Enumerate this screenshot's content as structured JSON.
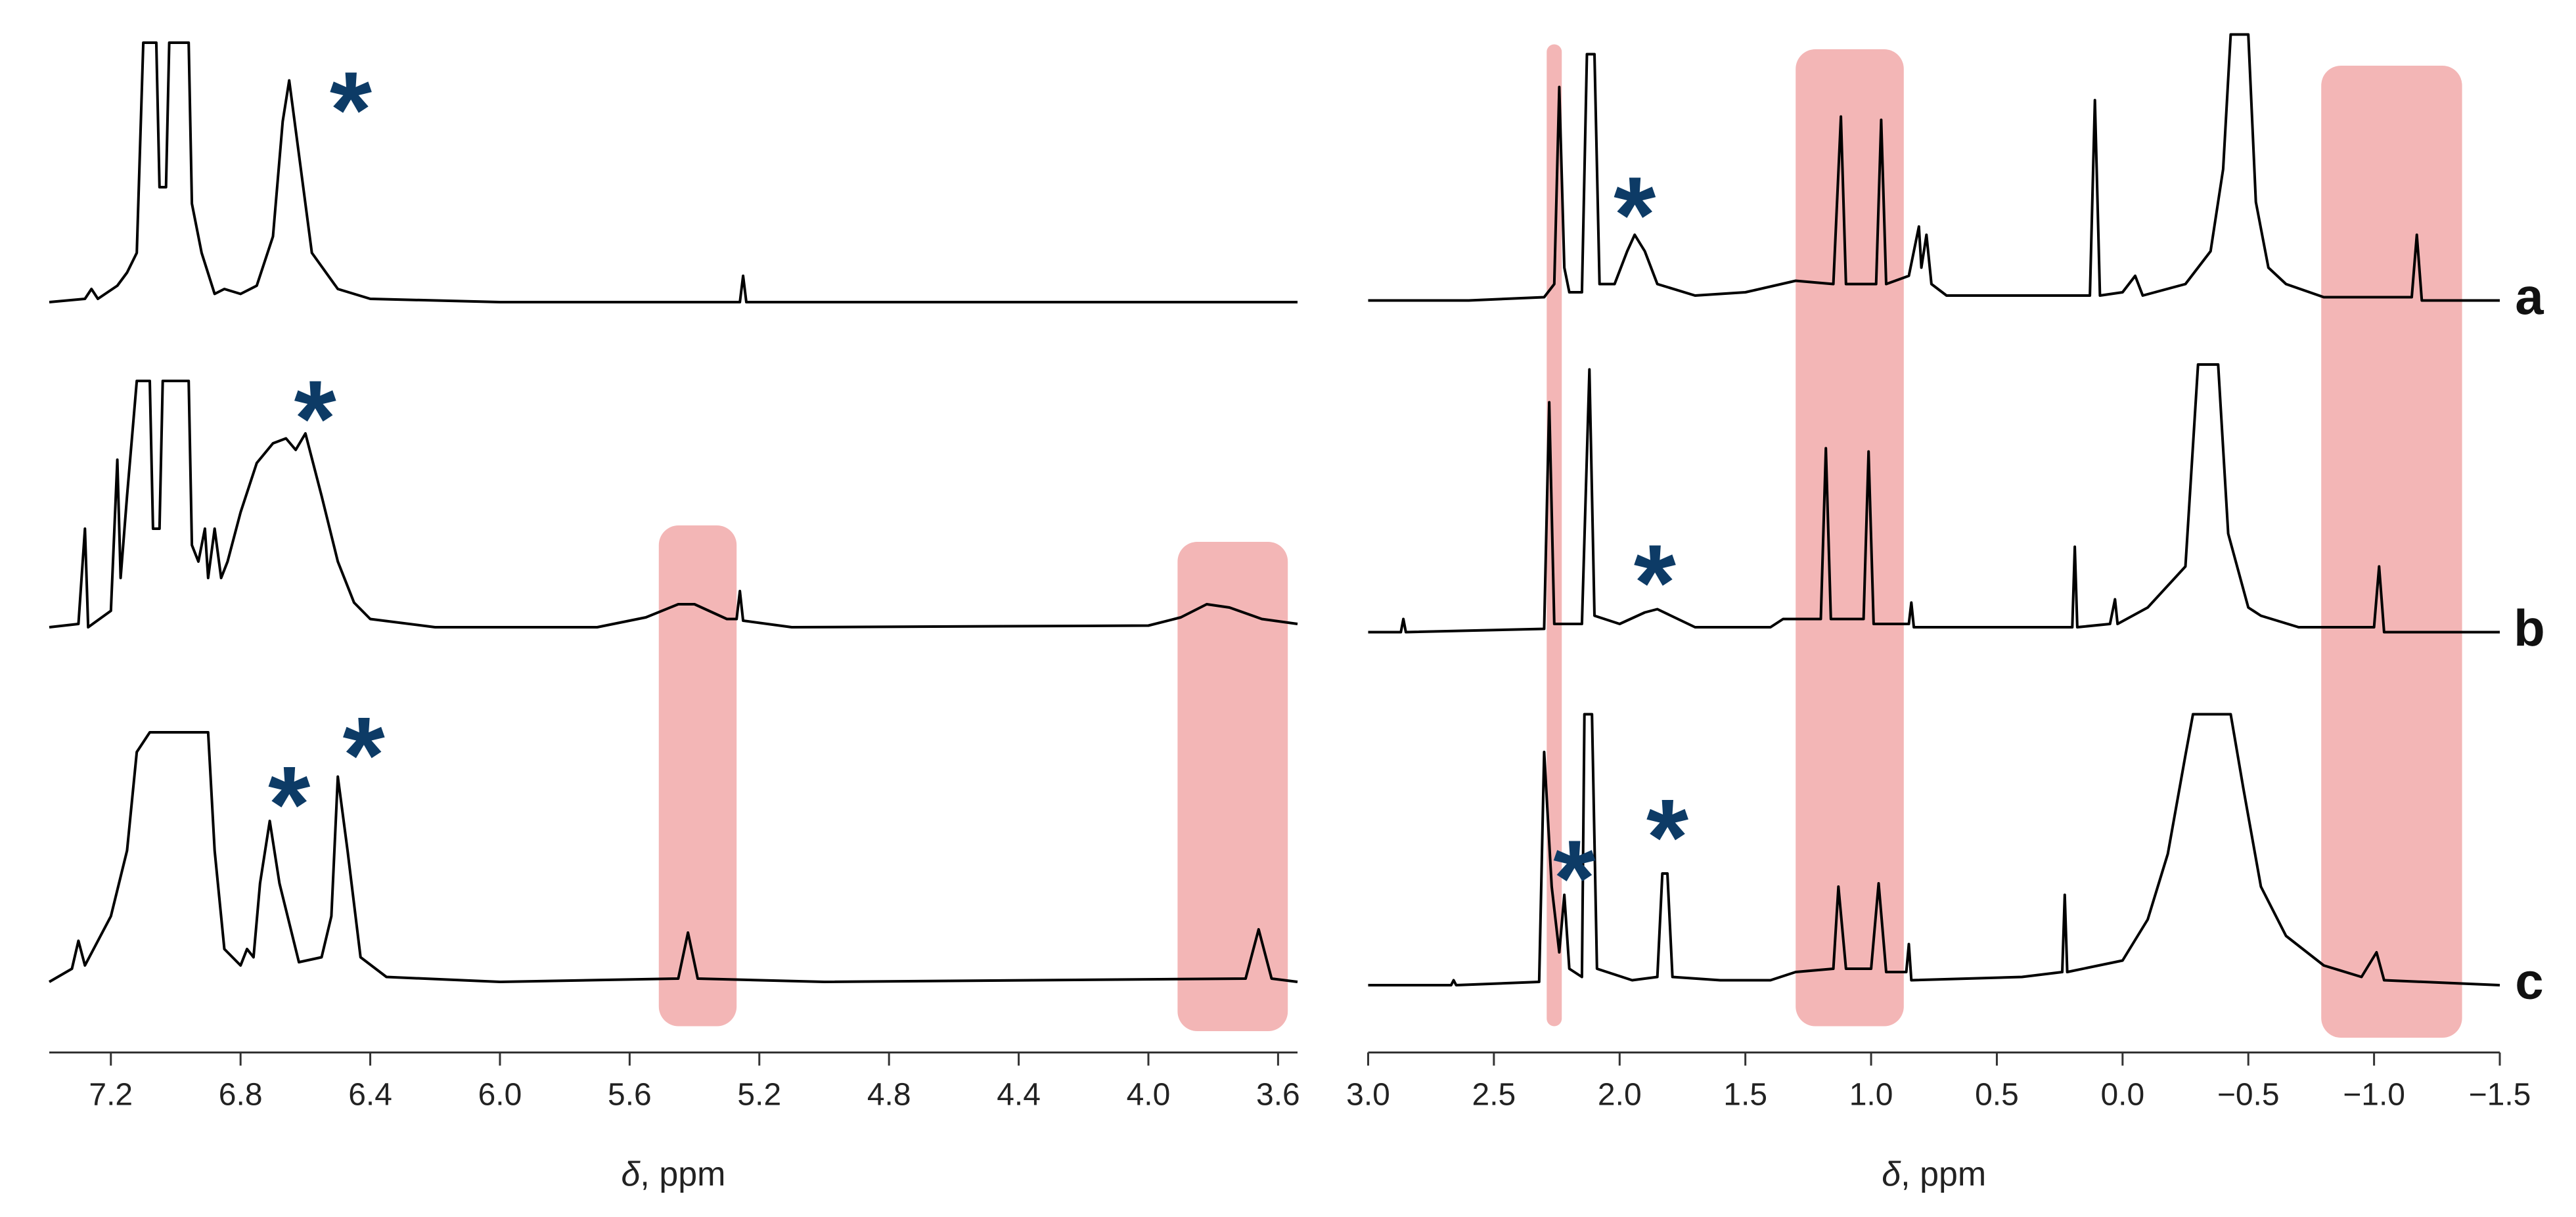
{
  "chart_data": [
    {
      "type": "line",
      "xlim": [
        7.39,
        3.54
      ],
      "xticks": [
        7.2,
        6.8,
        6.4,
        {
          "value": 6,
          "label": "6.0"
        },
        5.6,
        5.2,
        4.8,
        4.4,
        {
          "value": 4,
          "label": "4.0"
        },
        3.6
      ],
      "x_label": {
        "symbol": "δ",
        "text": ", ppm"
      },
      "highlights": [
        [
          5.51,
          5.27
        ],
        [
          3.91,
          3.57
        ]
      ],
      "highlight_color": "#f3b6b6",
      "annotation_color": "#0d3b66",
      "series": [
        {
          "color": "#000000",
          "x": [
            7.39,
            7.28,
            7.26,
            7.24,
            7.18,
            7.15,
            7.12,
            7.1,
            7.06,
            7.05,
            7.03,
            7.02,
            6.96,
            6.95,
            6.92,
            6.88,
            6.85,
            6.8,
            6.75,
            6.7,
            6.67,
            6.65,
            6.62,
            6.58,
            6.5,
            6.4,
            6.0,
            5.26,
            5.25,
            5.24,
            4.8,
            3.54
          ],
          "values": [
            0,
            2,
            8,
            2,
            10,
            18,
            30,
            158,
            158,
            70,
            70,
            158,
            158,
            60,
            30,
            5,
            8,
            5,
            10,
            40,
            110,
            135,
            90,
            30,
            8,
            2,
            0,
            0,
            16,
            0,
            0,
            0
          ],
          "annotations": [
            {
              "text": "*",
              "x": 6.46,
              "y": 132
            }
          ]
        },
        {
          "color": "#000000",
          "x": [
            7.39,
            7.3,
            7.28,
            7.27,
            7.2,
            7.18,
            7.17,
            7.15,
            7.12,
            7.08,
            7.07,
            7.05,
            7.04,
            6.96,
            6.95,
            6.93,
            6.91,
            6.9,
            6.88,
            6.86,
            6.84,
            6.8,
            6.75,
            6.7,
            6.66,
            6.63,
            6.6,
            6.55,
            6.5,
            6.45,
            6.4,
            6.2,
            5.7,
            5.55,
            5.45,
            5.4,
            5.3,
            5.27,
            5.26,
            5.25,
            5.1,
            4.0,
            3.9,
            3.82,
            3.75,
            3.65,
            3.54
          ],
          "values": [
            0,
            2,
            60,
            0,
            10,
            102,
            30,
            80,
            150,
            150,
            60,
            60,
            150,
            150,
            50,
            40,
            60,
            30,
            60,
            30,
            40,
            70,
            100,
            112,
            115,
            108,
            118,
            80,
            40,
            15,
            5,
            0,
            0,
            6,
            14,
            14,
            5,
            5,
            22,
            4,
            0,
            1,
            6,
            14,
            12,
            5,
            2
          ],
          "annotations": [
            {
              "text": "*",
              "x": 6.57,
              "y": 142
            }
          ]
        },
        {
          "color": "#000000",
          "x": [
            7.39,
            7.32,
            7.3,
            7.28,
            7.2,
            7.15,
            7.12,
            7.08,
            6.9,
            6.88,
            6.85,
            6.8,
            6.78,
            6.76,
            6.74,
            6.71,
            6.68,
            6.62,
            6.55,
            6.52,
            6.5,
            6.47,
            6.43,
            6.35,
            6.0,
            5.45,
            5.42,
            5.39,
            5.0,
            3.7,
            3.66,
            3.62,
            3.54
          ],
          "values": [
            0,
            8,
            25,
            10,
            40,
            80,
            140,
            152,
            152,
            80,
            20,
            10,
            20,
            15,
            60,
            98,
            60,
            12,
            15,
            40,
            125,
            80,
            15,
            3,
            0,
            2,
            30,
            2,
            0,
            2,
            32,
            2,
            0
          ],
          "annotations": [
            {
              "text": "*",
              "x": 6.65,
              "y": 123
            },
            {
              "text": "*",
              "x": 6.42,
              "y": 153
            }
          ]
        }
      ]
    },
    {
      "type": "line",
      "xlim": [
        3.0,
        -1.5
      ],
      "xticks": [
        {
          "value": 3,
          "label": "3.0"
        },
        2.5,
        {
          "value": 2,
          "label": "2.0"
        },
        1.5,
        {
          "value": 1,
          "label": "1.0"
        },
        0.5,
        {
          "value": 0,
          "label": "0.0"
        },
        {
          "value": -0.5,
          "label": "−0.5"
        },
        {
          "value": -1,
          "label": "−1.0"
        },
        {
          "value": -1.5,
          "label": "−1.5"
        }
      ],
      "x_label": {
        "symbol": "δ",
        "text": ", ppm"
      },
      "highlights": [
        [
          2.29,
          2.23
        ],
        [
          1.3,
          0.87
        ],
        [
          -0.79,
          -1.35
        ]
      ],
      "highlight_color": "#f3b6b6",
      "annotation_color": "#0d3b66",
      "series": [
        {
          "name": "a",
          "color": "#000000",
          "x": [
            3.0,
            2.6,
            2.3,
            2.26,
            2.24,
            2.22,
            2.2,
            2.15,
            2.13,
            2.1,
            2.08,
            2.02,
            1.97,
            1.94,
            1.9,
            1.85,
            1.7,
            1.5,
            1.3,
            1.15,
            1.12,
            1.1,
            0.98,
            0.96,
            0.94,
            0.85,
            0.81,
            0.8,
            0.78,
            0.76,
            0.7,
            0.2,
            0.13,
            0.11,
            0.09,
            0.0,
            -0.05,
            -0.08,
            -0.25,
            -0.35,
            -0.4,
            -0.43,
            -0.5,
            -0.53,
            -0.58,
            -0.65,
            -0.8,
            -1.15,
            -1.17,
            -1.19,
            -1.5
          ],
          "values": [
            0,
            0,
            2,
            10,
            130,
            20,
            5,
            5,
            150,
            150,
            10,
            10,
            30,
            40,
            30,
            10,
            3,
            5,
            12,
            10,
            112,
            10,
            10,
            110,
            10,
            15,
            45,
            20,
            40,
            10,
            3,
            3,
            3,
            122,
            3,
            5,
            15,
            3,
            10,
            30,
            80,
            162,
            162,
            60,
            20,
            10,
            2,
            2,
            40,
            0,
            0
          ],
          "annotations": [
            {
              "text": "*",
              "x": 1.94,
              "y": 67
            }
          ]
        },
        {
          "name": "b",
          "color": "#000000",
          "x": [
            3.0,
            2.87,
            2.86,
            2.85,
            2.3,
            2.28,
            2.26,
            2.15,
            2.12,
            2.1,
            2.0,
            1.9,
            1.85,
            1.7,
            1.4,
            1.35,
            1.2,
            1.18,
            1.16,
            1.03,
            1.01,
            0.99,
            0.85,
            0.84,
            0.83,
            0.2,
            0.19,
            0.18,
            0.05,
            0.03,
            0.02,
            -0.1,
            -0.25,
            -0.3,
            -0.38,
            -0.42,
            -0.5,
            -0.55,
            -0.7,
            -1.0,
            -1.02,
            -1.04,
            -1.5
          ],
          "values": [
            0,
            0,
            8,
            0,
            2,
            140,
            5,
            5,
            160,
            10,
            5,
            12,
            14,
            3,
            3,
            8,
            8,
            112,
            8,
            8,
            110,
            5,
            5,
            18,
            3,
            3,
            52,
            3,
            5,
            20,
            5,
            15,
            40,
            163,
            163,
            60,
            15,
            10,
            3,
            3,
            40,
            0,
            0
          ],
          "annotations": [
            {
              "text": "*",
              "x": 1.86,
              "y": 45
            }
          ]
        },
        {
          "name": "c",
          "color": "#000000",
          "x": [
            3.0,
            2.67,
            2.66,
            2.65,
            2.32,
            2.3,
            2.27,
            2.24,
            2.22,
            2.2,
            2.15,
            2.14,
            2.11,
            2.09,
            1.95,
            1.85,
            1.83,
            1.81,
            1.79,
            1.6,
            1.4,
            1.3,
            1.15,
            1.13,
            1.1,
            1.0,
            0.97,
            0.94,
            0.86,
            0.85,
            0.84,
            0.4,
            0.24,
            0.23,
            0.22,
            0.0,
            -0.1,
            -0.18,
            -0.25,
            -0.28,
            -0.43,
            -0.48,
            -0.55,
            -0.65,
            -0.8,
            -0.95,
            -1.01,
            -1.04,
            -1.5
          ],
          "values": [
            0,
            0,
            3,
            0,
            2,
            142,
            60,
            20,
            55,
            10,
            5,
            165,
            165,
            10,
            3,
            5,
            68,
            68,
            5,
            3,
            3,
            8,
            10,
            60,
            10,
            10,
            62,
            8,
            8,
            25,
            3,
            5,
            8,
            55,
            8,
            15,
            40,
            80,
            140,
            165,
            165,
            120,
            60,
            30,
            12,
            5,
            20,
            3,
            0
          ],
          "annotations": [
            {
              "text": "*",
              "x": 2.18,
              "y": 80
            },
            {
              "text": "*",
              "x": 1.81,
              "y": 105
            }
          ]
        }
      ]
    }
  ]
}
